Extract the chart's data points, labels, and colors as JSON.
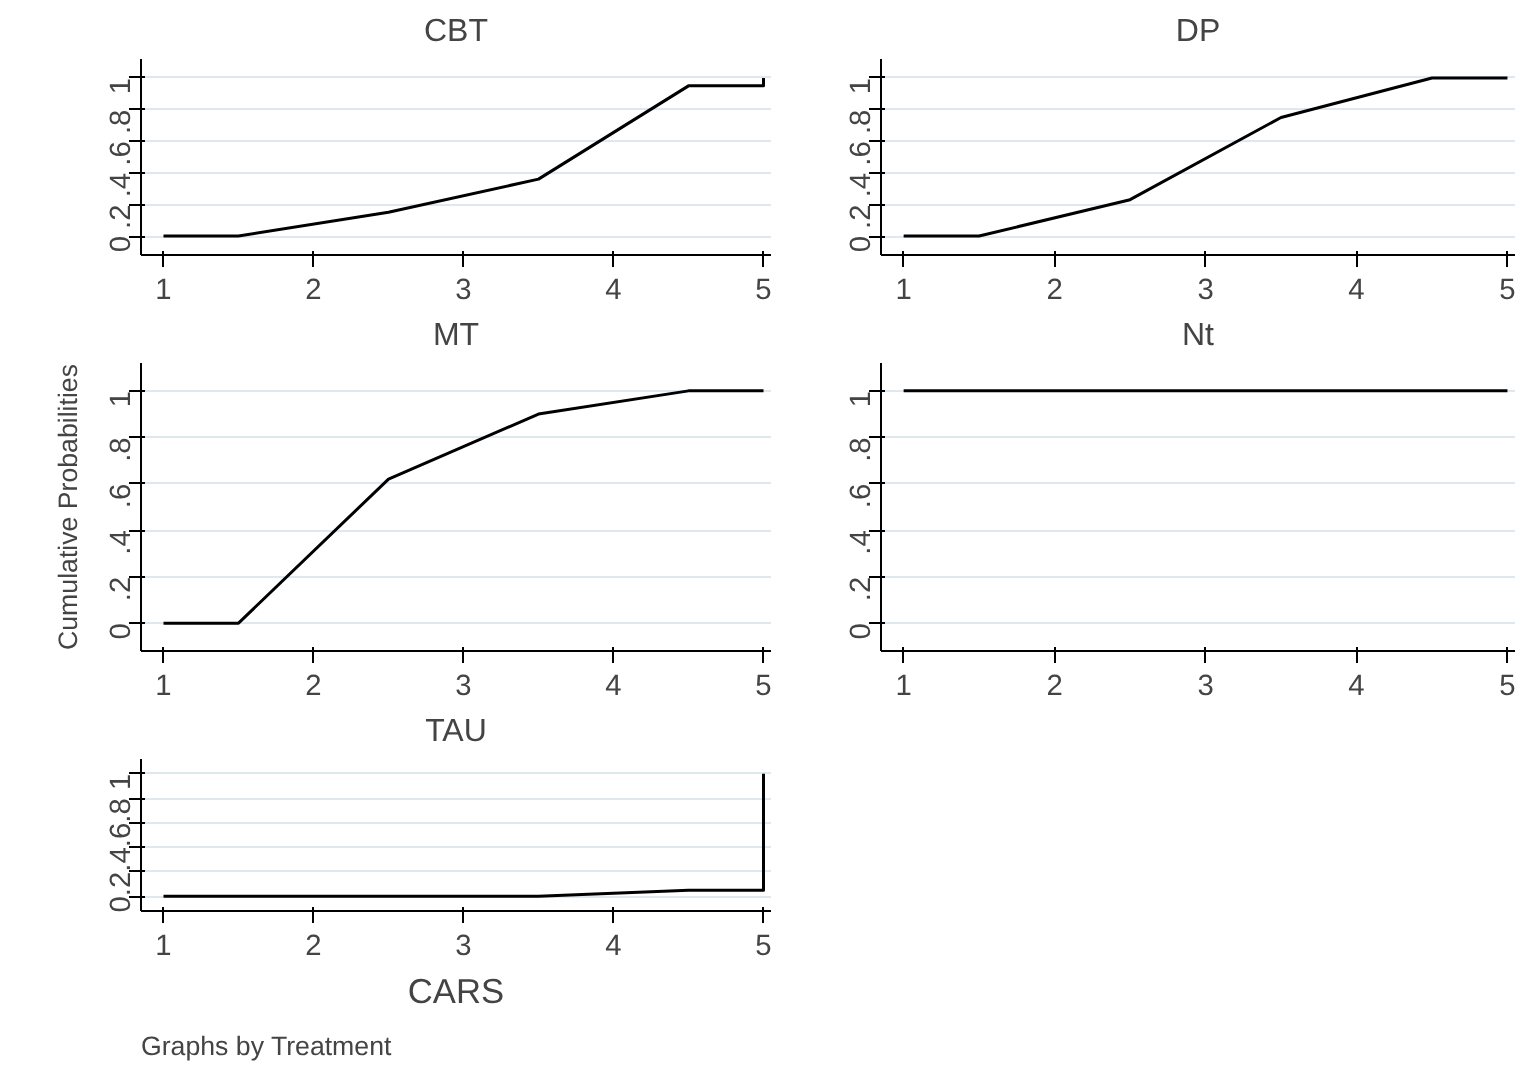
{
  "chart_data": [
    {
      "type": "line",
      "title": "CBT",
      "x": [
        1,
        1.5,
        2.5,
        3.5,
        4.5,
        5,
        5
      ],
      "series": [
        {
          "color": "#000000",
          "values": [
            0,
            0,
            0.15,
            0.36,
            0.95,
            0.95,
            1
          ]
        }
      ],
      "xlim": [
        0.85,
        5.05
      ],
      "ylim": [
        -0.12,
        1.12
      ],
      "xticks": [
        1,
        2,
        3,
        4,
        5
      ],
      "yticks": [
        0,
        {
          "value": 0.2,
          "label": ".2"
        },
        {
          "value": 0.4,
          "label": ".4"
        },
        {
          "value": 0.6,
          "label": ".6"
        },
        {
          "value": 0.8,
          "label": ".8"
        },
        1
      ],
      "grid": "y"
    },
    {
      "type": "line",
      "title": "DP",
      "x": [
        1,
        1.5,
        2.5,
        3.5,
        4.5,
        5
      ],
      "series": [
        {
          "color": "#000000",
          "values": [
            0,
            0,
            0.23,
            0.75,
            1,
            1
          ]
        }
      ],
      "xlim": [
        0.85,
        5.05
      ],
      "ylim": [
        -0.12,
        1.12
      ],
      "xticks": [
        1,
        2,
        3,
        4,
        5
      ],
      "yticks": [
        0,
        {
          "value": 0.2,
          "label": ".2"
        },
        {
          "value": 0.4,
          "label": ".4"
        },
        {
          "value": 0.6,
          "label": ".6"
        },
        {
          "value": 0.8,
          "label": ".8"
        },
        1
      ],
      "grid": "y"
    },
    {
      "type": "line",
      "title": "MT",
      "ylabel": "Cumulative Probabilities",
      "x": [
        1,
        1.5,
        2.5,
        3.5,
        4.5,
        5
      ],
      "series": [
        {
          "color": "#000000",
          "values": [
            0,
            0,
            0.62,
            0.9,
            1,
            1
          ]
        }
      ],
      "xlim": [
        0.85,
        5.05
      ],
      "ylim": [
        -0.12,
        1.12
      ],
      "xticks": [
        1,
        2,
        3,
        4,
        5
      ],
      "yticks": [
        0,
        {
          "value": 0.2,
          "label": ".2"
        },
        {
          "value": 0.4,
          "label": ".4"
        },
        {
          "value": 0.6,
          "label": ".6"
        },
        {
          "value": 0.8,
          "label": ".8"
        },
        1
      ],
      "grid": "y"
    },
    {
      "type": "line",
      "title": "Nt",
      "x": [
        1,
        1.5,
        2.5,
        3.5,
        4.5,
        5
      ],
      "series": [
        {
          "color": "#000000",
          "values": [
            1,
            1,
            1,
            1,
            1,
            1
          ]
        }
      ],
      "xlim": [
        0.85,
        5.05
      ],
      "ylim": [
        -0.12,
        1.12
      ],
      "xticks": [
        1,
        2,
        3,
        4,
        5
      ],
      "yticks": [
        0,
        {
          "value": 0.2,
          "label": ".2"
        },
        {
          "value": 0.4,
          "label": ".4"
        },
        {
          "value": 0.6,
          "label": ".6"
        },
        {
          "value": 0.8,
          "label": ".8"
        },
        1
      ],
      "grid": "y"
    },
    {
      "type": "line",
      "title": "TAU",
      "xlabel": "CARS",
      "annotations": [
        "Graphs by Treatment"
      ],
      "x": [
        1,
        1.5,
        2.5,
        3.5,
        4.5,
        5,
        5
      ],
      "series": [
        {
          "color": "#000000",
          "values": [
            0,
            0,
            0,
            0,
            0.05,
            0.05,
            1
          ]
        }
      ],
      "xlim": [
        0.85,
        5.05
      ],
      "ylim": [
        -0.12,
        1.12
      ],
      "xticks": [
        1,
        2,
        3,
        4,
        5
      ],
      "yticks": [
        0,
        {
          "value": 0.2,
          "label": ".2"
        },
        {
          "value": 0.4,
          "label": ".4"
        },
        {
          "value": 0.6,
          "label": ".6"
        },
        {
          "value": 0.8,
          "label": ".8"
        },
        1
      ],
      "grid": "y"
    }
  ]
}
